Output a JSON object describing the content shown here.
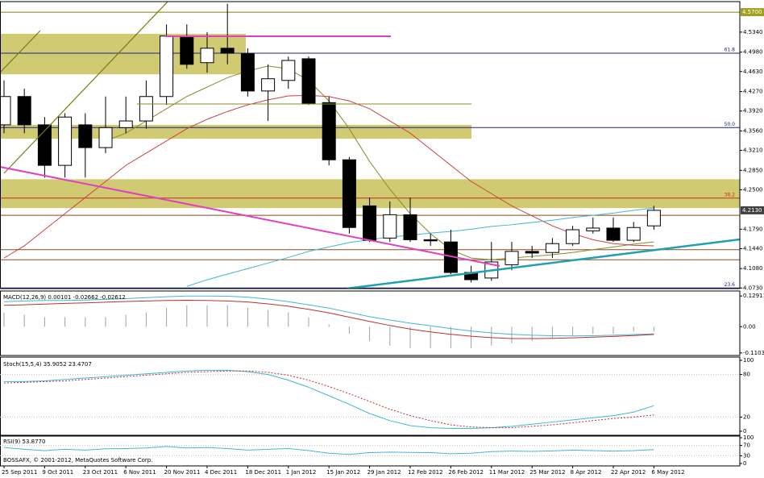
{
  "footer": "BOSSAFX, © 2001-2012, MetaQuotes Software Corp.",
  "chart_data": [
    {
      "type": "candlestick",
      "categories": [
        "25 Sep 2011",
        null,
        "9 Oct 2011",
        null,
        "23 Oct 2011",
        null,
        "6 Nov 2011",
        null,
        "20 Nov 2011",
        null,
        "4 Dec 2011",
        null,
        "18 Dec 2011",
        null,
        "1 Jan 2012",
        null,
        "15 Jan 2012",
        null,
        "29 Jan 2012",
        null,
        "12 Feb 2012",
        null,
        "26 Feb 2012",
        null,
        "11 Mar 2012",
        null,
        "25 Mar 2012",
        null,
        "8 Apr 2012",
        null,
        "22 Apr 2012",
        null,
        "6 May 2012"
      ],
      "open": [
        4.367,
        4.418,
        4.367,
        4.294,
        4.367,
        4.326,
        4.362,
        4.374,
        4.418,
        4.527,
        4.479,
        4.505,
        4.495,
        4.428,
        4.447,
        4.486,
        4.407,
        4.304,
        4.221,
        4.163,
        4.205,
        4.16,
        4.156,
        4.101,
        4.091,
        4.115,
        4.139,
        4.137,
        4.153,
        4.176,
        4.181,
        4.159,
        4.185
      ],
      "high": [
        4.447,
        4.432,
        4.381,
        4.388,
        4.388,
        4.418,
        4.418,
        4.447,
        4.548,
        4.548,
        4.534,
        4.585,
        4.505,
        4.476,
        4.49,
        4.49,
        4.418,
        4.309,
        4.236,
        4.229,
        4.236,
        4.171,
        4.178,
        4.113,
        4.156,
        4.156,
        4.149,
        4.163,
        4.185,
        4.2,
        4.2,
        4.192,
        4.221
      ],
      "low": [
        4.352,
        4.352,
        4.272,
        4.272,
        4.272,
        4.316,
        4.352,
        4.36,
        4.403,
        4.468,
        4.461,
        4.476,
        4.418,
        4.374,
        4.432,
        4.403,
        4.294,
        4.171,
        4.156,
        4.156,
        4.156,
        4.149,
        4.098,
        4.083,
        4.086,
        4.105,
        4.127,
        4.127,
        4.149,
        4.171,
        4.156,
        4.156,
        4.178
      ],
      "close": [
        4.418,
        4.367,
        4.294,
        4.381,
        4.326,
        4.362,
        4.374,
        4.418,
        4.527,
        4.476,
        4.505,
        4.496,
        4.428,
        4.45,
        4.483,
        4.406,
        4.304,
        4.182,
        4.159,
        4.205,
        4.16,
        4.158,
        4.101,
        4.088,
        4.12,
        4.139,
        4.136,
        4.153,
        4.178,
        4.181,
        4.159,
        4.182,
        4.213
      ],
      "up_color": "#ffffff",
      "down_color": "#000000",
      "series": [
        {
          "color": "#8a8a2a",
          "values": [
            null,
            null,
            null,
            null,
            null,
            4.338,
            4.352,
            4.374,
            4.396,
            4.418,
            4.435,
            4.452,
            4.464,
            4.473,
            4.468,
            4.447,
            4.41,
            4.36,
            4.301,
            4.251,
            4.207,
            4.171,
            4.142,
            4.127,
            4.124,
            4.127,
            4.13,
            4.133,
            4.137,
            4.142,
            4.147,
            4.152,
            4.156
          ]
        },
        {
          "color": "#d04040",
          "values": [
            4.127,
            4.149,
            4.178,
            4.207,
            4.236,
            4.265,
            4.294,
            4.316,
            4.338,
            4.36,
            4.377,
            4.391,
            4.403,
            4.412,
            4.419,
            4.42,
            4.418,
            4.41,
            4.396,
            4.374,
            4.352,
            4.323,
            4.294,
            4.265,
            4.243,
            4.221,
            4.203,
            4.185,
            4.171,
            4.16,
            4.153,
            4.15,
            4.149
          ]
        },
        {
          "color": "#40b8d0",
          "values": [
            null,
            null,
            null,
            null,
            null,
            null,
            null,
            null,
            null,
            4.076,
            4.088,
            4.098,
            4.108,
            4.118,
            4.128,
            4.139,
            4.147,
            4.155,
            4.16,
            4.165,
            4.168,
            4.172,
            4.175,
            4.179,
            4.184,
            4.187,
            4.191,
            4.195,
            4.2,
            4.204,
            4.208,
            4.213,
            4.217
          ]
        }
      ],
      "zones": [
        {
          "low": 4.458,
          "high": 4.531,
          "color": "#c8c25a"
        },
        {
          "low": 4.342,
          "high": 4.367,
          "color": "#c8c25a"
        },
        {
          "low": 4.217,
          "high": 4.269,
          "color": "#c8c25a"
        }
      ],
      "levels": [
        {
          "value": 4.57,
          "color": "#808000"
        },
        {
          "value": 4.496,
          "color": "#202080",
          "label": "61.8"
        },
        {
          "value": 4.362,
          "color": "#202080",
          "label": "50.0"
        },
        {
          "value": 4.235,
          "color": "#c03020",
          "label": "38.2"
        },
        {
          "value": 4.204,
          "color": "#8b4a20"
        },
        {
          "value": 4.142,
          "color": "#8b4a20"
        },
        {
          "value": 4.124,
          "color": "#8b4a20"
        },
        {
          "value": 4.073,
          "color": "#202080",
          "label": "23.6"
        }
      ],
      "price_markers": [
        {
          "value": 4.57,
          "label": "4.5700",
          "color": "#a0a020"
        },
        {
          "value": 4.213,
          "label": "4.2130",
          "color": "#404040"
        }
      ],
      "ylim": [
        4.072,
        4.589
      ],
      "yticks": [
        {
          "value": 4.534,
          "label": "4.5340"
        },
        {
          "value": 4.498,
          "label": "4.4980"
        },
        {
          "value": 4.463,
          "label": "4.4630"
        },
        {
          "value": 4.427,
          "label": "4.4270"
        },
        {
          "value": 4.392,
          "label": "4.3920"
        },
        {
          "value": 4.356,
          "label": "4.3560"
        },
        {
          "value": 4.321,
          "label": "4.3210"
        },
        {
          "value": 4.285,
          "label": "4.2850"
        },
        {
          "value": 4.25,
          "label": "4.2500"
        },
        {
          "value": 4.179,
          "label": "4.1790"
        },
        {
          "value": 4.144,
          "label": "4.1440"
        },
        {
          "value": 4.108,
          "label": "4.1080"
        },
        {
          "value": 4.073,
          "label": "4.0730"
        }
      ]
    },
    {
      "type": "combo",
      "title": "MACD(12,26,9) 0.00101 -0.02662 -0.02612",
      "bars": {
        "color": "#a0a0a0",
        "values": [
          0.06,
          0.05,
          0.04,
          0.04,
          0.04,
          0.04,
          0.05,
          0.06,
          0.08,
          0.09,
          0.09,
          0.09,
          0.08,
          0.07,
          0.06,
          0.04,
          0.01,
          -0.03,
          -0.06,
          -0.08,
          -0.09,
          -0.09,
          -0.09,
          -0.09,
          -0.08,
          -0.07,
          -0.06,
          -0.05,
          -0.04,
          -0.03,
          -0.03,
          -0.02,
          -0.02
        ]
      },
      "series": [
        {
          "color": "#40b8d0",
          "values": [
            0.105,
            0.108,
            0.11,
            0.11,
            0.112,
            0.115,
            0.118,
            0.122,
            0.126,
            0.129,
            0.129,
            0.128,
            0.124,
            0.116,
            0.105,
            0.092,
            0.078,
            0.06,
            0.042,
            0.028,
            0.015,
            0.004,
            -0.008,
            -0.018,
            -0.026,
            -0.032,
            -0.036,
            -0.038,
            -0.039,
            -0.038,
            -0.036,
            -0.033,
            -0.03
          ]
        },
        {
          "color": "#c03030",
          "values": [
            0.09,
            0.092,
            0.095,
            0.098,
            0.1,
            0.103,
            0.106,
            0.108,
            0.11,
            0.111,
            0.11,
            0.108,
            0.104,
            0.096,
            0.086,
            0.073,
            0.058,
            0.04,
            0.022,
            0.005,
            -0.01,
            -0.022,
            -0.032,
            -0.04,
            -0.046,
            -0.05,
            -0.05,
            -0.049,
            -0.047,
            -0.044,
            -0.041,
            -0.037,
            -0.033
          ]
        }
      ],
      "ylim": [
        -0.121,
        0.15
      ],
      "yticks": [
        0.12911,
        {
          "value": 0,
          "label": "0.00"
        },
        -0.11031
      ]
    },
    {
      "type": "line",
      "title": "Stoch(15,5,4) 35.9052 23.4707",
      "series": [
        {
          "color": "#40b8d0",
          "values": [
            70,
            70,
            71,
            73,
            75,
            77,
            79,
            81,
            83,
            85,
            86,
            86,
            84,
            80,
            72,
            62,
            50,
            38,
            25,
            15,
            8,
            5,
            4,
            4,
            5,
            7,
            10,
            13,
            16,
            19,
            22,
            27,
            36
          ]
        },
        {
          "color": "#c03030",
          "dashed": true,
          "values": [
            68,
            69,
            70,
            71,
            73,
            75,
            77,
            79,
            81,
            83,
            84,
            85,
            85,
            83,
            79,
            72,
            63,
            53,
            42,
            31,
            22,
            15,
            9,
            6,
            5,
            5,
            7,
            9,
            12,
            15,
            18,
            20,
            23
          ]
        }
      ],
      "ylim": [
        0,
        100
      ],
      "yticks": [
        100,
        80,
        20,
        0
      ]
    },
    {
      "type": "line",
      "title": "RSI(9) 53.8770",
      "series": [
        {
          "color": "#40b8d0",
          "values": [
            62,
            55,
            50,
            55,
            52,
            57,
            58,
            60,
            66,
            60,
            62,
            58,
            52,
            55,
            58,
            50,
            40,
            35,
            42,
            44,
            43,
            42,
            38,
            40,
            46,
            48,
            47,
            49,
            52,
            50,
            48,
            50,
            54
          ]
        }
      ],
      "ylim": [
        0,
        100
      ],
      "yticks": [
        100,
        70,
        30,
        0
      ]
    }
  ]
}
